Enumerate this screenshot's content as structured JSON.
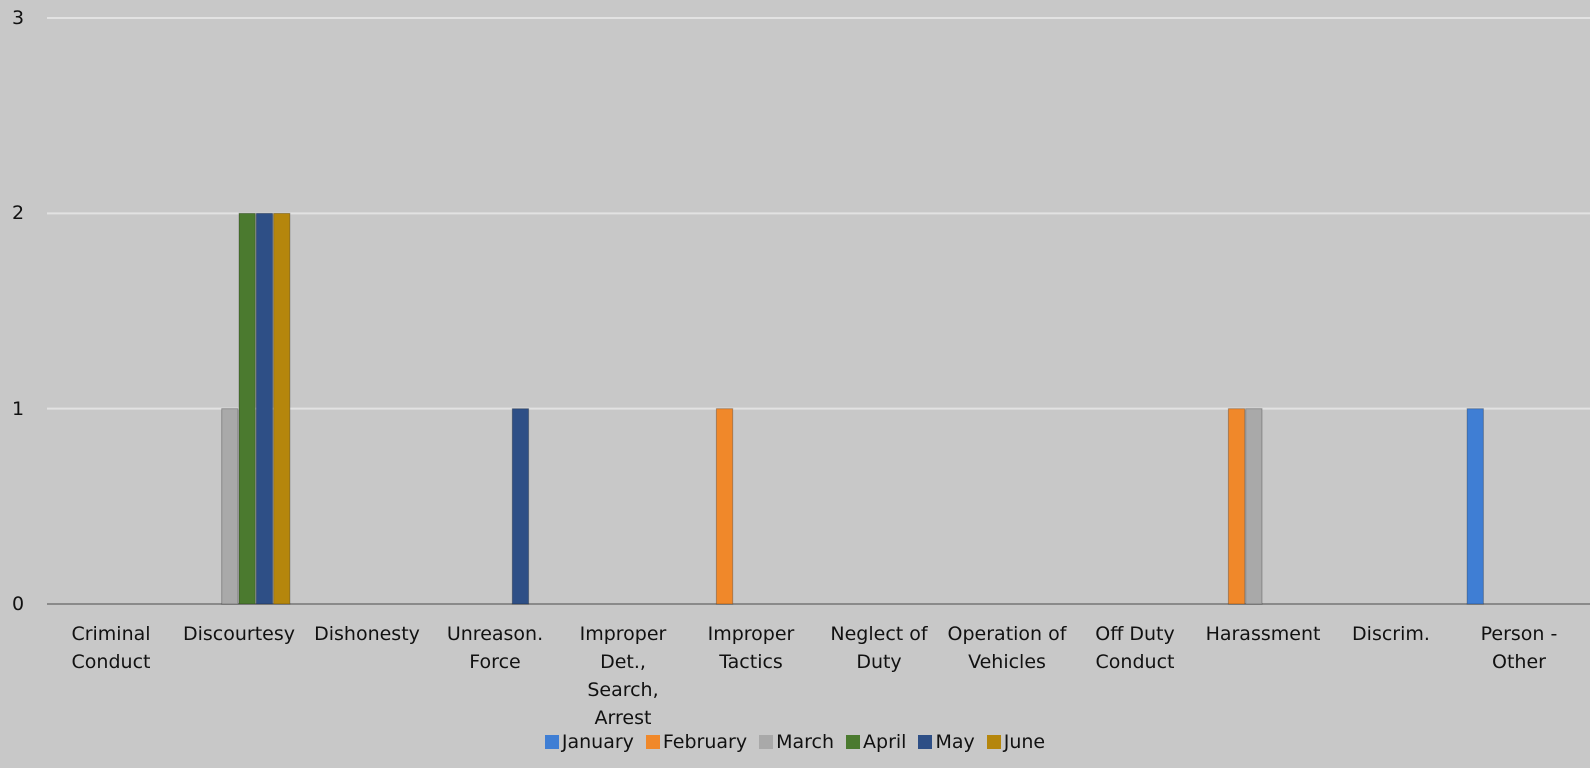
{
  "chart_data": {
    "type": "bar",
    "categories": [
      "Criminal Conduct",
      "Discourtesy",
      "Dishonesty",
      "Unreason. Force",
      "Improper Det., Search, Arrest",
      "Improper Tactics",
      "Neglect of Duty",
      "Operation of Vehicles",
      "Off Duty Conduct",
      "Harassment",
      "Discrim.",
      "Person - Other"
    ],
    "series": [
      {
        "name": "January",
        "color": "#3f7ed4",
        "values": [
          0,
          0,
          0,
          0,
          0,
          0,
          0,
          0,
          0,
          0,
          0,
          1
        ]
      },
      {
        "name": "February",
        "color": "#f0882a",
        "values": [
          0,
          0,
          0,
          0,
          0,
          1,
          0,
          0,
          0,
          1,
          0,
          0
        ]
      },
      {
        "name": "March",
        "color": "#a9a9a9",
        "values": [
          0,
          1,
          0,
          0,
          0,
          0,
          0,
          0,
          0,
          1,
          0,
          0
        ]
      },
      {
        "name": "April",
        "color": "#4b7a2f",
        "values": [
          0,
          2,
          0,
          0,
          0,
          0,
          0,
          0,
          0,
          0,
          0,
          0
        ]
      },
      {
        "name": "May",
        "color": "#2e4f86",
        "values": [
          0,
          2,
          0,
          1,
          0,
          0,
          0,
          0,
          0,
          0,
          0,
          0
        ]
      },
      {
        "name": "June",
        "color": "#b5860c",
        "values": [
          0,
          2,
          0,
          0,
          0,
          0,
          0,
          0,
          0,
          0,
          0,
          0
        ]
      }
    ],
    "ylim": [
      0,
      3
    ],
    "yticks": [
      0,
      1,
      2,
      3
    ],
    "grid": true,
    "legend": "bottom"
  }
}
